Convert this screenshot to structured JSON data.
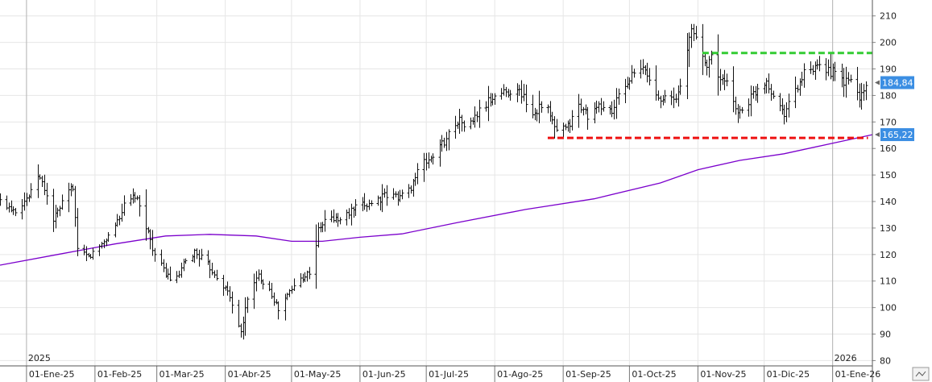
{
  "chart_data": {
    "type": "bar",
    "subtype": "ohlc",
    "grid": true,
    "y_axis_position": "right",
    "ylim": [
      78,
      216
    ],
    "y_ticks": [
      80,
      90,
      100,
      110,
      120,
      130,
      140,
      150,
      160,
      170,
      180,
      190,
      200,
      210
    ],
    "x_start": "2024-12-20",
    "x_end": "2026-01-19",
    "x_ticks": [
      {
        "date": "2025-01-01",
        "label": "01-Ene-25"
      },
      {
        "date": "2025-02-01",
        "label": "01-Feb-25"
      },
      {
        "date": "2025-03-01",
        "label": "01-Mar-25"
      },
      {
        "date": "2025-04-01",
        "label": "01-Abr-25"
      },
      {
        "date": "2025-05-01",
        "label": "01-May-25"
      },
      {
        "date": "2025-06-01",
        "label": "01-Jun-25"
      },
      {
        "date": "2025-07-01",
        "label": "01-Jul-25"
      },
      {
        "date": "2025-08-01",
        "label": "01-Ago-25"
      },
      {
        "date": "2025-09-01",
        "label": "01-Sep-25"
      },
      {
        "date": "2025-10-01",
        "label": "01-Oct-25"
      },
      {
        "date": "2025-11-01",
        "label": "01-Nov-25"
      },
      {
        "date": "2025-12-01",
        "label": "01-Dic-25"
      },
      {
        "date": "2026-01-01",
        "label": "01-Ene-26"
      }
    ],
    "year_markers": [
      {
        "date": "2025-01-01",
        "label": "2025"
      },
      {
        "date": "2026-01-01",
        "label": "2026"
      }
    ],
    "anchors": [
      [
        "2024-12-20",
        140
      ],
      [
        "2024-12-27",
        137
      ],
      [
        "2025-01-03",
        143
      ],
      [
        "2025-01-06",
        150
      ],
      [
        "2025-01-09",
        145
      ],
      [
        "2025-01-13",
        133
      ],
      [
        "2025-01-17",
        139
      ],
      [
        "2025-01-22",
        146
      ],
      [
        "2025-01-24",
        121
      ],
      [
        "2025-01-29",
        119
      ],
      [
        "2025-02-02",
        122
      ],
      [
        "2025-02-08",
        128
      ],
      [
        "2025-02-14",
        138
      ],
      [
        "2025-02-19",
        142
      ],
      [
        "2025-02-24",
        131
      ],
      [
        "2025-02-28",
        120
      ],
      [
        "2025-03-04",
        114
      ],
      [
        "2025-03-09",
        109
      ],
      [
        "2025-03-13",
        116
      ],
      [
        "2025-03-18",
        121
      ],
      [
        "2025-03-22",
        118
      ],
      [
        "2025-03-27",
        113
      ],
      [
        "2025-04-02",
        106
      ],
      [
        "2025-04-06",
        97
      ],
      [
        "2025-04-08",
        90
      ],
      [
        "2025-04-11",
        104
      ],
      [
        "2025-04-16",
        112
      ],
      [
        "2025-04-21",
        107
      ],
      [
        "2025-04-25",
        99
      ],
      [
        "2025-04-30",
        106
      ],
      [
        "2025-05-05",
        111
      ],
      [
        "2025-05-10",
        114
      ],
      [
        "2025-05-13",
        129
      ],
      [
        "2025-05-17",
        134
      ],
      [
        "2025-05-23",
        133
      ],
      [
        "2025-05-29",
        137
      ],
      [
        "2025-06-04",
        139
      ],
      [
        "2025-06-12",
        142
      ],
      [
        "2025-06-19",
        142
      ],
      [
        "2025-06-23",
        144
      ],
      [
        "2025-06-28",
        153
      ],
      [
        "2025-07-05",
        158
      ],
      [
        "2025-07-10",
        164
      ],
      [
        "2025-07-15",
        171
      ],
      [
        "2025-07-20",
        168
      ],
      [
        "2025-07-25",
        174
      ],
      [
        "2025-08-01",
        180
      ],
      [
        "2025-08-08",
        182
      ],
      [
        "2025-08-13",
        181
      ],
      [
        "2025-08-18",
        173
      ],
      [
        "2025-08-23",
        178
      ],
      [
        "2025-08-29",
        166
      ],
      [
        "2025-09-03",
        168
      ],
      [
        "2025-09-08",
        176
      ],
      [
        "2025-09-13",
        172
      ],
      [
        "2025-09-18",
        176
      ],
      [
        "2025-09-23",
        174
      ],
      [
        "2025-09-28",
        183
      ],
      [
        "2025-10-03",
        188
      ],
      [
        "2025-10-08",
        190
      ],
      [
        "2025-10-12",
        181
      ],
      [
        "2025-10-17",
        179
      ],
      [
        "2025-10-22",
        178
      ],
      [
        "2025-10-26",
        192
      ],
      [
        "2025-10-29",
        205
      ],
      [
        "2025-11-01",
        201
      ],
      [
        "2025-11-04",
        192
      ],
      [
        "2025-11-07",
        194
      ],
      [
        "2025-11-11",
        186
      ],
      [
        "2025-11-16",
        182
      ],
      [
        "2025-11-19",
        173
      ],
      [
        "2025-11-24",
        178
      ],
      [
        "2025-11-29",
        184
      ],
      [
        "2025-12-02",
        186
      ],
      [
        "2025-12-06",
        178
      ],
      [
        "2025-12-10",
        174
      ],
      [
        "2025-12-14",
        180
      ],
      [
        "2025-12-19",
        188
      ],
      [
        "2025-12-23",
        189
      ],
      [
        "2025-12-28",
        191
      ],
      [
        "2026-01-02",
        188
      ],
      [
        "2026-01-06",
        185
      ],
      [
        "2026-01-10",
        186
      ],
      [
        "2026-01-13",
        179
      ],
      [
        "2026-01-17",
        185
      ]
    ],
    "moving_average": {
      "color": "#7b00cc",
      "points": [
        [
          "2024-12-20",
          116
        ],
        [
          "2025-01-15",
          120
        ],
        [
          "2025-02-10",
          124
        ],
        [
          "2025-03-05",
          127
        ],
        [
          "2025-03-25",
          127.6
        ],
        [
          "2025-04-15",
          127
        ],
        [
          "2025-05-01",
          125
        ],
        [
          "2025-05-15",
          125
        ],
        [
          "2025-06-01",
          126.5
        ],
        [
          "2025-06-20",
          127.8
        ],
        [
          "2025-07-15",
          132
        ],
        [
          "2025-08-15",
          137
        ],
        [
          "2025-09-15",
          141
        ],
        [
          "2025-10-15",
          147
        ],
        [
          "2025-11-01",
          152
        ],
        [
          "2025-11-20",
          155.5
        ],
        [
          "2025-12-10",
          158
        ],
        [
          "2026-01-01",
          162
        ],
        [
          "2026-01-19",
          165.22
        ]
      ]
    },
    "resistance": {
      "color": "#33cc33",
      "value": 196,
      "from": "2025-11-03",
      "to": "2026-01-19"
    },
    "support": {
      "color": "#ee1111",
      "value": 164,
      "from": "2025-08-25",
      "to": "2026-01-17"
    },
    "last_price": {
      "value": 184.84,
      "label": "184,84",
      "color": "#3b8ee3"
    },
    "ma_value": {
      "value": 165.22,
      "label": "165,22",
      "color": "#3b8ee3"
    }
  }
}
